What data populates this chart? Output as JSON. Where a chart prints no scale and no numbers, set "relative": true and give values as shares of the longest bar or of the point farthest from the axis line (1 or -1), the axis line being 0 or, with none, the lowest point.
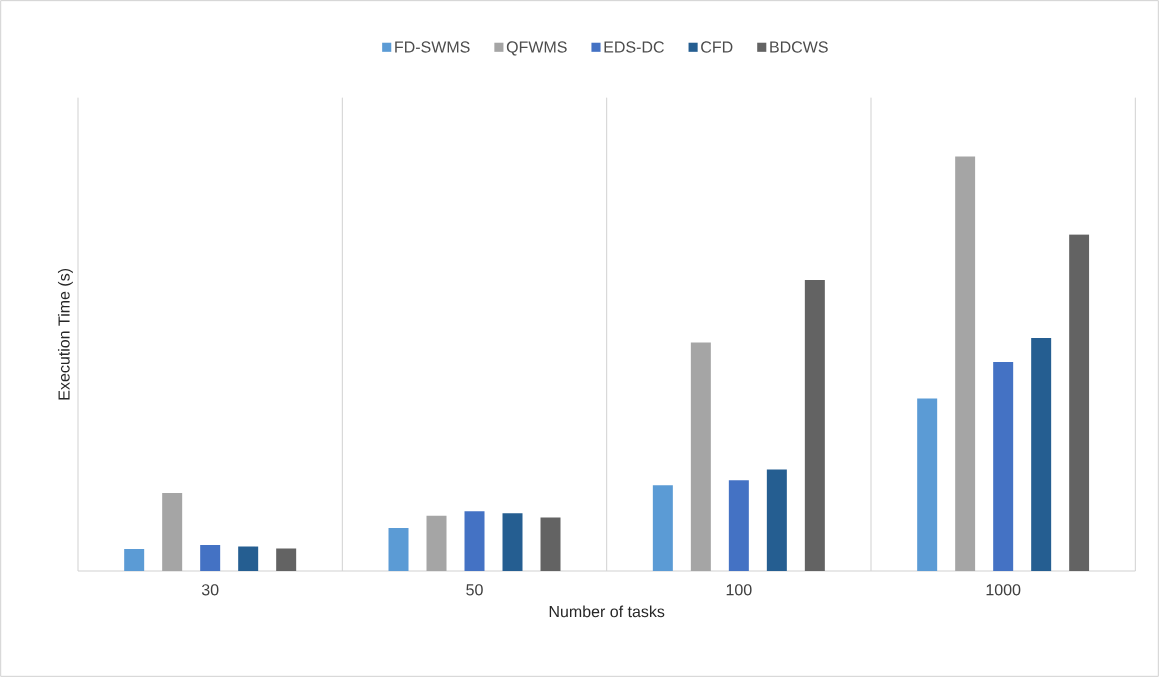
{
  "chart_data": {
    "type": "bar",
    "relative": true,
    "xlabel": "Number of tasks",
    "ylabel": "Execution Time (s)",
    "categories": [
      "30",
      "50",
      "100",
      "1000"
    ],
    "series": [
      {
        "name": "FD-SWMS",
        "color": "#5b9bd5",
        "values": [
          0.053,
          0.104,
          0.207,
          0.416
        ]
      },
      {
        "name": "QFWMS",
        "color": "#a5a5a5",
        "values": [
          0.188,
          0.133,
          0.551,
          1
        ]
      },
      {
        "name": "EDS-DC",
        "color": "#4472c4",
        "values": [
          0.063,
          0.144,
          0.219,
          0.504
        ]
      },
      {
        "name": "CFD",
        "color": "#255e91",
        "values": [
          0.059,
          0.139,
          0.245,
          0.562
        ]
      },
      {
        "name": "BDCWS",
        "color": "#636363",
        "values": [
          0.054,
          0.129,
          0.702,
          0.812
        ]
      }
    ],
    "grid": "x",
    "legend": "top"
  }
}
